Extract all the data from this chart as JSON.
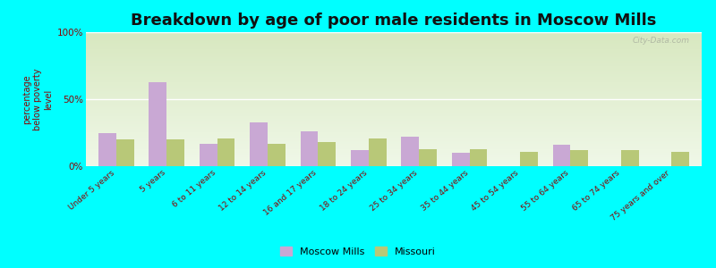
{
  "title": "Breakdown by age of poor male residents in Moscow Mills",
  "ylabel": "percentage\nbelow poverty\nlevel",
  "categories": [
    "Under 5 years",
    "5 years",
    "6 to 11 years",
    "12 to 14 years",
    "16 and 17 years",
    "18 to 24 years",
    "25 to 34 years",
    "35 to 44 years",
    "45 to 54 years",
    "55 to 64 years",
    "65 to 74 years",
    "75 years and over"
  ],
  "moscow_mills": [
    25,
    63,
    17,
    33,
    26,
    12,
    22,
    10,
    0,
    16,
    0,
    0
  ],
  "missouri": [
    20,
    20,
    21,
    17,
    18,
    21,
    13,
    13,
    11,
    12,
    12,
    11
  ],
  "moscow_color": "#c9a8d4",
  "missouri_color": "#b8c878",
  "ylim": [
    0,
    100
  ],
  "yticks": [
    0,
    50,
    100
  ],
  "ytick_labels": [
    "0%",
    "50%",
    "100%"
  ],
  "background_color": "#00ffff",
  "plot_bg_top": "#d8e8c0",
  "plot_bg_bottom": "#f0f8e8",
  "grid_color": "#ffffff",
  "bar_width": 0.35,
  "title_fontsize": 13,
  "watermark": "City-Data.com"
}
